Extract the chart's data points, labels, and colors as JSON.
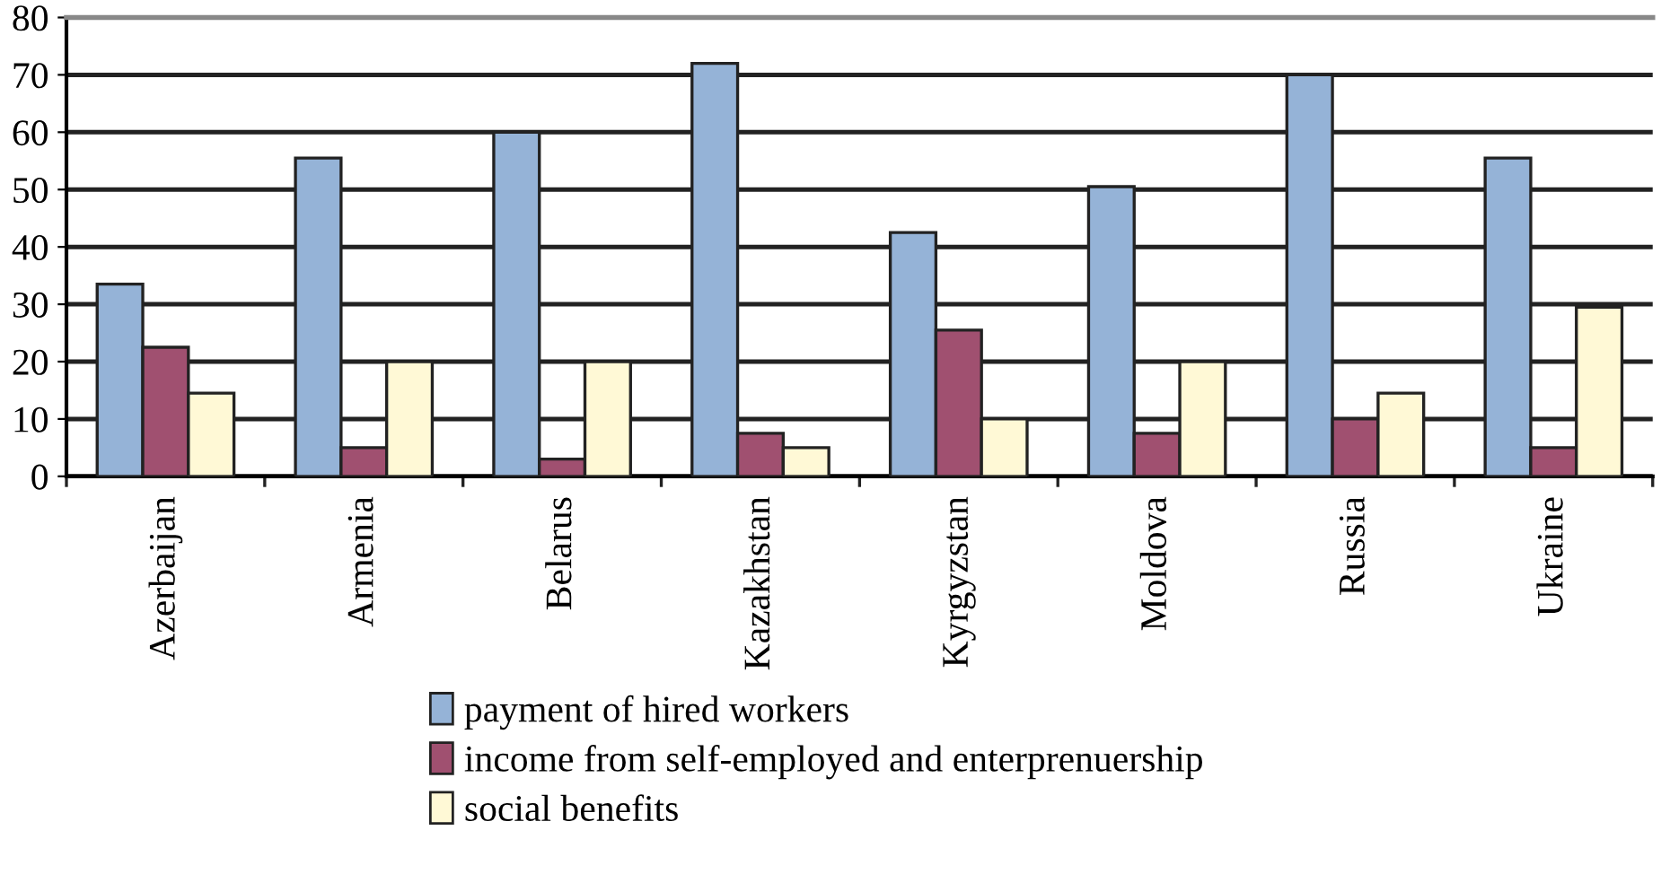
{
  "chart_data": {
    "type": "bar",
    "categories": [
      "Azerbaijan",
      "Armenia",
      "Belarus",
      "Kazakhstan",
      "Kyrgyzstan",
      "Moldova",
      "Russia",
      "Ukraine"
    ],
    "series": [
      {
        "name": "payment of hired workers",
        "color": "#95b3d7",
        "values": [
          33.5,
          55.5,
          60,
          72,
          42.5,
          50.5,
          70,
          55.5
        ]
      },
      {
        "name": "income from self-employed and enterprenuership",
        "color": "#a05070",
        "values": [
          22.5,
          5,
          3,
          7.5,
          25.5,
          7.5,
          10,
          5
        ]
      },
      {
        "name": "social benefits",
        "color": "#fff9d6",
        "values": [
          14.5,
          20,
          20,
          5,
          10,
          20,
          14.5,
          29.5
        ]
      }
    ],
    "ylim": [
      0,
      80
    ],
    "yticks": [
      0,
      10,
      20,
      30,
      40,
      50,
      60,
      70,
      80
    ],
    "grid": "y",
    "legend": "bottom"
  }
}
